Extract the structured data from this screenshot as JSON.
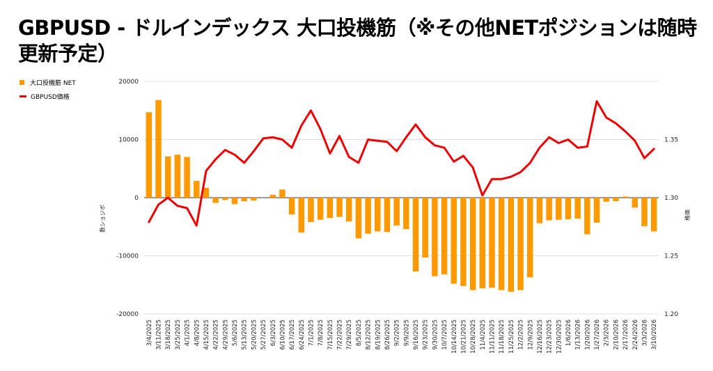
{
  "chart_data": {
    "type": "bar",
    "title": "GBPUSD - ドルインデックス 大口投機筋（※その他NETポジションは随時更新予定）",
    "xlabel": "",
    "ylabel": "数ショジボ",
    "y2label": "格価",
    "ylim": [
      -20000,
      20000
    ],
    "y2lim": [
      1.2,
      1.4
    ],
    "yticks": [
      20000,
      10000,
      0,
      -10000,
      -20000
    ],
    "y2ticks": [
      "1.35",
      "1.30",
      "1.25",
      "1.20"
    ],
    "categories": [
      "3/4/2025",
      "3/11/2025",
      "3/18/2025",
      "3/25/2025",
      "4/1/2025",
      "4/8/2025",
      "4/15/2025",
      "4/22/2025",
      "4/29/2025",
      "5/6/2025",
      "5/13/2025",
      "5/20/2025",
      "5/27/2025",
      "6/3/2025",
      "6/10/2025",
      "6/17/2025",
      "6/24/2025",
      "7/1/2025",
      "7/8/2025",
      "7/15/2025",
      "7/22/2025",
      "7/29/2025",
      "8/5/2025",
      "8/12/2025",
      "8/19/2025",
      "8/26/2025",
      "9/2/2025",
      "9/9/2025",
      "9/16/2025",
      "9/23/2025",
      "9/30/2025",
      "10/7/2025",
      "10/14/2025",
      "10/21/2025",
      "10/28/2025",
      "11/4/2025",
      "11/11/2025",
      "11/18/2025",
      "11/25/2025",
      "12/2/2025",
      "12/9/2025",
      "12/16/2025",
      "12/23/2025",
      "12/30/2025",
      "1/6/2026",
      "1/13/2026",
      "1/20/2026",
      "1/27/2026",
      "2/3/2026",
      "2/10/2026",
      "2/17/2026",
      "2/24/2026",
      "3/3/2026",
      "3/10/2026"
    ],
    "series": [
      {
        "name": "大口投機筋 NET",
        "type": "bar",
        "axis": "left",
        "color": "#FF9900",
        "values": [
          14700,
          16800,
          7100,
          7400,
          7000,
          2900,
          1700,
          -900,
          -400,
          -1100,
          -600,
          -500,
          0,
          500,
          1400,
          -2900,
          -6000,
          -4200,
          -3800,
          -3500,
          -3300,
          -4100,
          -7000,
          -6200,
          -5800,
          -5900,
          -4800,
          -5400,
          -12700,
          -10300,
          -13500,
          -13200,
          -14800,
          -15200,
          -15900,
          -15600,
          -15500,
          -15900,
          -16200,
          -15900,
          -13700,
          -4400,
          -3900,
          -3800,
          -3700,
          -3600,
          -6300,
          -4300,
          -700,
          -600,
          200,
          -1700,
          -4900,
          -5800
        ]
      },
      {
        "name": "GBPUSD価格",
        "type": "line",
        "axis": "right",
        "color": "#EE0000",
        "values": [
          1.279,
          1.294,
          1.3,
          1.293,
          1.291,
          1.276,
          1.323,
          1.333,
          1.341,
          1.337,
          1.33,
          1.34,
          1.351,
          1.352,
          1.35,
          1.343,
          1.362,
          1.375,
          1.359,
          1.338,
          1.353,
          1.335,
          1.33,
          1.35,
          1.349,
          1.348,
          1.34,
          1.352,
          1.363,
          1.352,
          1.345,
          1.343,
          1.331,
          1.336,
          1.326,
          1.302,
          1.316,
          1.316,
          1.318,
          1.322,
          1.33,
          1.343,
          1.352,
          1.347,
          1.35,
          1.343,
          1.344,
          1.383,
          1.369,
          1.364,
          1.357,
          1.349,
          1.334,
          1.342
        ]
      }
    ],
    "legend": "top-left",
    "grid": true
  }
}
